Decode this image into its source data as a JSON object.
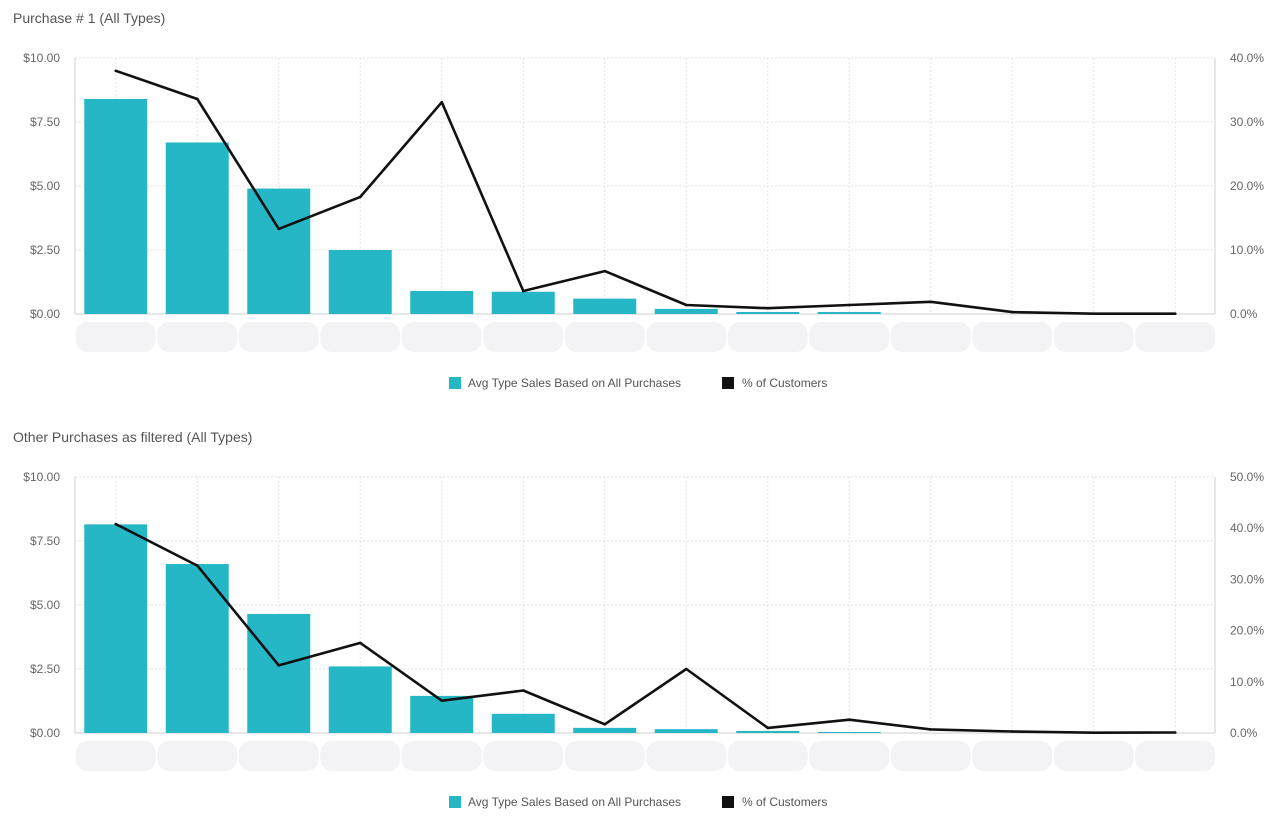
{
  "chart_data": [
    {
      "type": "bar",
      "title": "Purchase # 1 (All Types)",
      "categories": [
        "",
        "",
        "",
        "",
        "",
        "",
        "",
        "",
        "",
        "",
        "",
        "",
        "",
        ""
      ],
      "series": [
        {
          "name": "Avg Type Sales Based on All Purchases",
          "type": "bar",
          "axis": "left",
          "values": [
            8.4,
            6.7,
            4.9,
            2.5,
            0.9,
            0.87,
            0.6,
            0.2,
            0.08,
            0.08,
            0,
            0,
            0,
            0
          ]
        },
        {
          "name": "% of Customers",
          "type": "line",
          "axis": "right",
          "values": [
            38.0,
            33.6,
            13.3,
            18.3,
            33.1,
            3.6,
            6.7,
            1.4,
            0.9,
            1.4,
            1.9,
            0.3,
            0.05,
            0.05
          ]
        }
      ],
      "y_left": {
        "ylim": [
          0,
          10
        ],
        "ticks": [
          "$0.00",
          "$2.50",
          "$5.00",
          "$7.50",
          "$10.00"
        ]
      },
      "y_right": {
        "ylim": [
          0,
          40
        ],
        "ticks": [
          "0.0%",
          "10.0%",
          "20.0%",
          "30.0%",
          "40.0%"
        ]
      },
      "grid": true,
      "legend": "bottom-center",
      "colors": {
        "bar": "#26b7c6",
        "line": "#111111"
      }
    },
    {
      "type": "bar",
      "title": "Other Purchases as filtered (All Types)",
      "categories": [
        "",
        "",
        "",
        "",
        "",
        "",
        "",
        "",
        "",
        "",
        "",
        "",
        "",
        ""
      ],
      "series": [
        {
          "name": "Avg Type Sales Based on All Purchases",
          "type": "bar",
          "axis": "left",
          "values": [
            8.15,
            6.6,
            4.65,
            2.6,
            1.45,
            0.75,
            0.2,
            0.15,
            0.08,
            0.04,
            0,
            0,
            0,
            0
          ]
        },
        {
          "name": "% of Customers",
          "type": "line",
          "axis": "right",
          "values": [
            40.8,
            32.7,
            13.2,
            17.6,
            6.3,
            8.3,
            1.7,
            12.5,
            1.0,
            2.6,
            0.7,
            0.3,
            0.05,
            0.1
          ]
        }
      ],
      "y_left": {
        "ylim": [
          0,
          10
        ],
        "ticks": [
          "$0.00",
          "$2.50",
          "$5.00",
          "$7.50",
          "$10.00"
        ]
      },
      "y_right": {
        "ylim": [
          0,
          50
        ],
        "ticks": [
          "0.0%",
          "10.0%",
          "20.0%",
          "30.0%",
          "40.0%",
          "50.0%"
        ]
      },
      "grid": true,
      "legend": "bottom-center",
      "colors": {
        "bar": "#26b7c6",
        "line": "#111111"
      }
    }
  ]
}
